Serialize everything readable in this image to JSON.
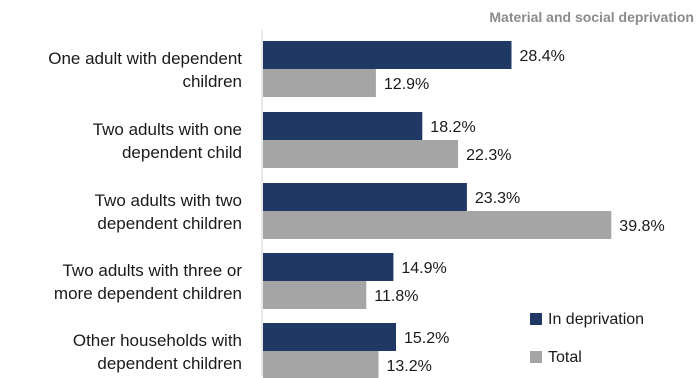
{
  "chart_data": {
    "type": "bar",
    "orientation": "horizontal",
    "title": "",
    "subtitle": "Material and social deprivation",
    "categories": [
      [
        "One adult with dependent",
        "children"
      ],
      [
        "Two adults with one",
        "dependent child"
      ],
      [
        "Two adults with two",
        "dependent children"
      ],
      [
        "Two adults with three or",
        "more dependent children"
      ],
      [
        "Other households with",
        "dependent children"
      ]
    ],
    "series": [
      {
        "name": "In deprivation",
        "color": "#1f3864",
        "values": [
          28.4,
          18.2,
          23.3,
          14.9,
          15.2
        ]
      },
      {
        "name": "Total",
        "color": "#a5a5a5",
        "values": [
          12.9,
          22.3,
          39.8,
          11.8,
          13.2
        ]
      }
    ],
    "value_suffix": "%",
    "xlim": [
      0,
      40
    ],
    "grid": false,
    "legend_position": "bottom-right"
  }
}
